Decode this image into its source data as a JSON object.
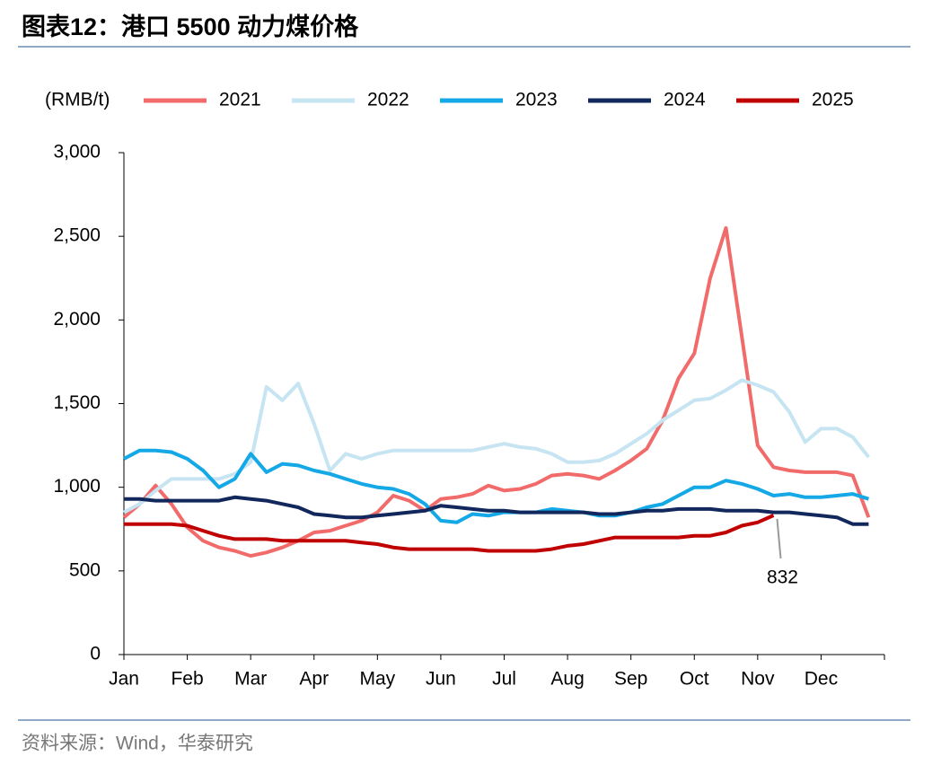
{
  "header": {
    "title": "图表12：港口 5500 动力煤价格"
  },
  "chart_data": {
    "type": "line",
    "unit": "(RMB/t)",
    "categories": [
      "Jan",
      null,
      null,
      null,
      "Feb",
      null,
      null,
      null,
      "Mar",
      null,
      null,
      null,
      "Apr",
      null,
      null,
      null,
      "May",
      null,
      null,
      null,
      "Jun",
      null,
      null,
      null,
      "Jul",
      null,
      null,
      null,
      "Aug",
      null,
      null,
      null,
      "Sep",
      null,
      null,
      null,
      "Oct",
      null,
      null,
      null,
      "Nov",
      null,
      null,
      null,
      "Dec",
      null,
      null,
      null
    ],
    "series": [
      {
        "name": "2021",
        "color": "#f26b6b",
        "values": [
          820,
          900,
          1010,
          900,
          760,
          680,
          640,
          620,
          590,
          610,
          640,
          680,
          730,
          740,
          770,
          800,
          850,
          950,
          920,
          860,
          930,
          940,
          960,
          1010,
          980,
          990,
          1020,
          1070,
          1080,
          1070,
          1050,
          1100,
          1160,
          1230,
          1400,
          1650,
          1800,
          2250,
          2550,
          1900,
          1250,
          1120,
          1100,
          1090,
          1090,
          1090,
          1070,
          820
        ]
      },
      {
        "name": "2022",
        "color": "#c6e4f2",
        "values": [
          850,
          900,
          980,
          1050,
          1050,
          1050,
          1050,
          1080,
          1150,
          1600,
          1520,
          1620,
          1380,
          1100,
          1200,
          1170,
          1200,
          1220,
          1220,
          1220,
          1220,
          1220,
          1220,
          1240,
          1260,
          1240,
          1230,
          1200,
          1150,
          1150,
          1160,
          1200,
          1260,
          1320,
          1400,
          1460,
          1520,
          1530,
          1580,
          1640,
          1610,
          1570,
          1450,
          1270,
          1350,
          1350,
          1300,
          1180
        ]
      },
      {
        "name": "2023",
        "color": "#14a8e6",
        "values": [
          1170,
          1220,
          1220,
          1210,
          1170,
          1100,
          1000,
          1050,
          1200,
          1090,
          1140,
          1130,
          1100,
          1080,
          1050,
          1020,
          1000,
          990,
          960,
          900,
          800,
          790,
          840,
          830,
          850,
          850,
          850,
          870,
          860,
          850,
          830,
          830,
          850,
          880,
          900,
          950,
          1000,
          1000,
          1040,
          1020,
          990,
          950,
          960,
          940,
          940,
          950,
          960,
          930
        ]
      },
      {
        "name": "2024",
        "color": "#12275c",
        "values": [
          930,
          930,
          920,
          920,
          920,
          920,
          920,
          940,
          930,
          920,
          900,
          880,
          840,
          830,
          820,
          820,
          830,
          840,
          850,
          860,
          890,
          880,
          870,
          860,
          860,
          850,
          850,
          850,
          850,
          850,
          840,
          840,
          850,
          860,
          860,
          870,
          870,
          870,
          860,
          860,
          860,
          850,
          850,
          840,
          830,
          820,
          780,
          780
        ]
      },
      {
        "name": "2025",
        "color": "#c00000",
        "values": [
          780,
          780,
          780,
          780,
          770,
          740,
          710,
          690,
          690,
          690,
          680,
          680,
          680,
          680,
          680,
          670,
          660,
          640,
          630,
          630,
          630,
          630,
          630,
          620,
          620,
          620,
          620,
          630,
          650,
          660,
          680,
          700,
          700,
          700,
          700,
          700,
          710,
          710,
          730,
          770,
          790,
          832,
          null,
          null,
          null,
          null,
          null,
          null
        ]
      }
    ],
    "ylim": [
      0,
      3000
    ],
    "yticks": [
      0,
      500,
      {
        "value": 1000,
        "label": "1,000"
      },
      {
        "value": 1500,
        "label": "1,500"
      },
      {
        "value": 2000,
        "label": "2,000"
      },
      {
        "value": 2500,
        "label": "2,500"
      },
      {
        "value": 3000,
        "label": "3,000"
      }
    ]
  },
  "footer": {
    "source": "资料来源：Wind，华泰研究"
  }
}
